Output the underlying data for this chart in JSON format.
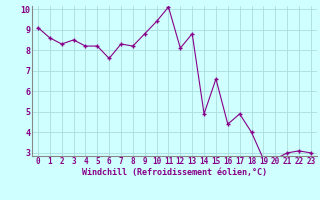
{
  "x": [
    0,
    1,
    2,
    3,
    4,
    5,
    6,
    7,
    8,
    9,
    10,
    11,
    12,
    13,
    14,
    15,
    16,
    17,
    18,
    19,
    20,
    21,
    22,
    23
  ],
  "y": [
    9.1,
    8.6,
    8.3,
    8.5,
    8.2,
    8.2,
    7.6,
    8.3,
    8.2,
    8.8,
    9.4,
    10.1,
    8.1,
    8.8,
    4.9,
    6.6,
    4.4,
    4.9,
    4.0,
    2.7,
    2.7,
    3.0,
    3.1,
    3.0
  ],
  "line_color": "#880088",
  "marker": "+",
  "bg_color": "#cfffff",
  "grid_color": "#aadddd",
  "xlabel": "Windchill (Refroidissement éolien,°C)",
  "ylim": [
    3,
    10
  ],
  "xlim": [
    -0.5,
    23.5
  ],
  "yticks": [
    3,
    4,
    5,
    6,
    7,
    8,
    9,
    10
  ],
  "xticks": [
    0,
    1,
    2,
    3,
    4,
    5,
    6,
    7,
    8,
    9,
    10,
    11,
    12,
    13,
    14,
    15,
    16,
    17,
    18,
    19,
    20,
    21,
    22,
    23
  ],
  "xlabel_color": "#880088",
  "tick_color": "#880088",
  "spine_color": "#888888",
  "font_family": "monospace",
  "tick_fontsize": 5.5,
  "xlabel_fontsize": 6.0
}
